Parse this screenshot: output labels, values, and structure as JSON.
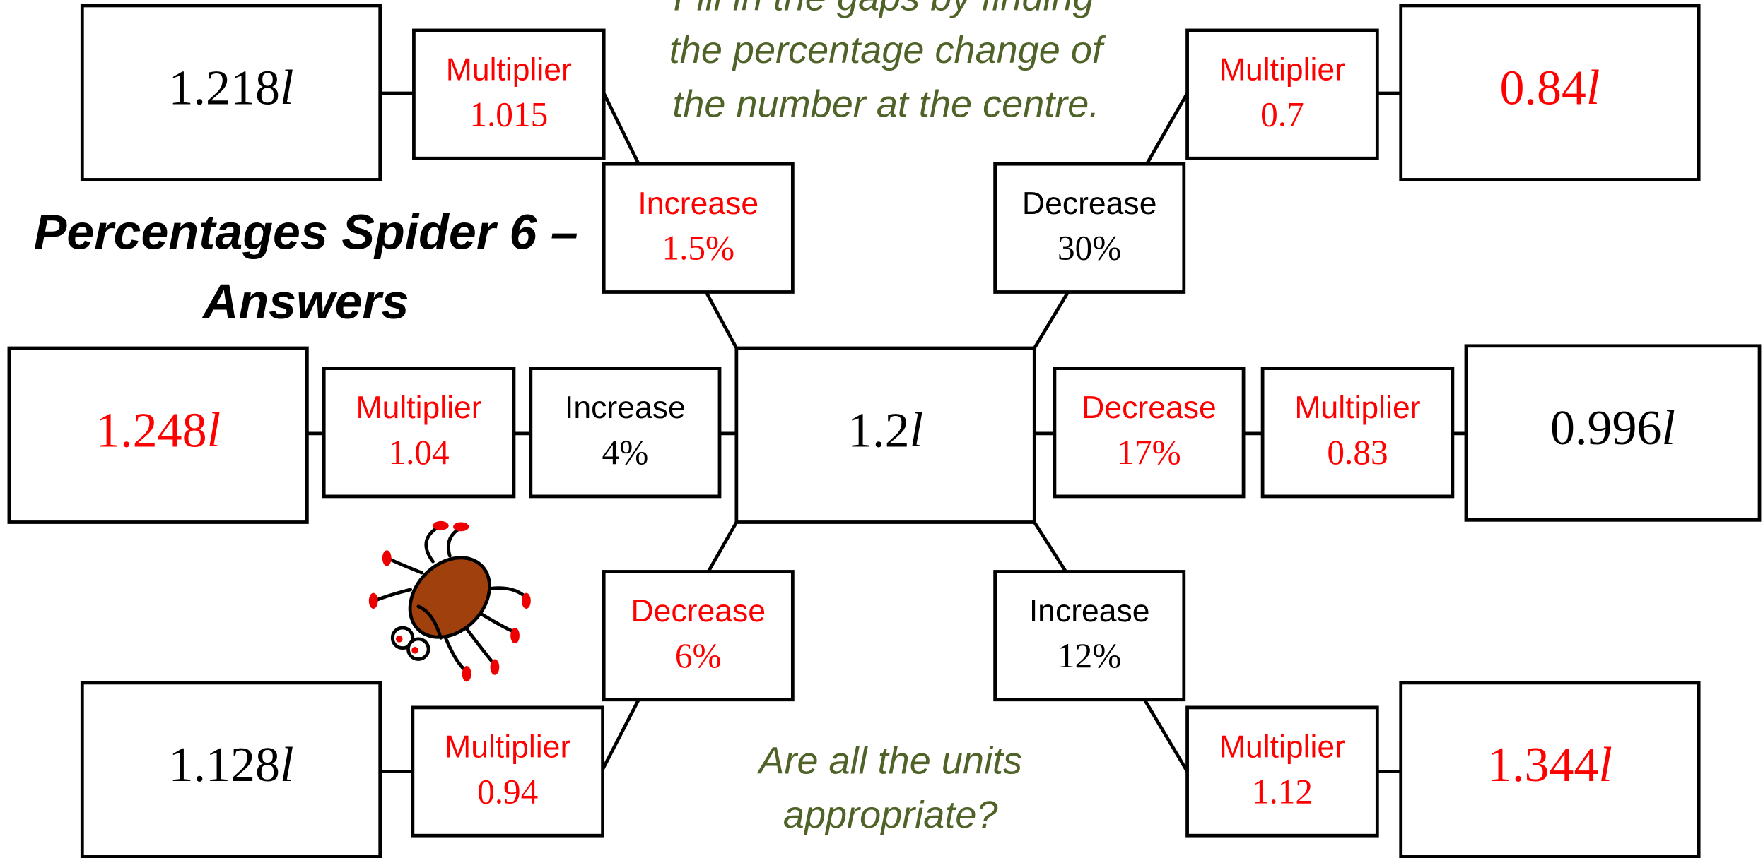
{
  "title": [
    "Percentages Spider 6 –",
    "Answers"
  ],
  "instructions": [
    "Fill in the gaps by finding",
    "the percentage change of",
    "the number at the centre."
  ],
  "question": [
    "Are all the units",
    "appropriate?"
  ],
  "centre": "1.2l",
  "legs": [
    {
      "change": {
        "label": "Increase",
        "value": "1.5%"
      },
      "multiplier": {
        "label": "Multiplier",
        "value": "1.015"
      },
      "result": "1.218l"
    },
    {
      "change": {
        "label": "Decrease",
        "value": "30%"
      },
      "multiplier": {
        "label": "Multiplier",
        "value": "0.7"
      },
      "result": "0.84l"
    },
    {
      "change": {
        "label": "Increase",
        "value": "4%"
      },
      "multiplier": {
        "label": "Multiplier",
        "value": "1.04"
      },
      "result": "1.248l"
    },
    {
      "change": {
        "label": "Decrease",
        "value": "17%"
      },
      "multiplier": {
        "label": "Multiplier",
        "value": "0.83"
      },
      "result": "0.996l"
    },
    {
      "change": {
        "label": "Decrease",
        "value": "6%"
      },
      "multiplier": {
        "label": "Multiplier",
        "value": "0.94"
      },
      "result": "1.128l"
    },
    {
      "change": {
        "label": "Increase",
        "value": "12%"
      },
      "multiplier": {
        "label": "Multiplier",
        "value": "1.12"
      },
      "result": "1.344l"
    }
  ]
}
